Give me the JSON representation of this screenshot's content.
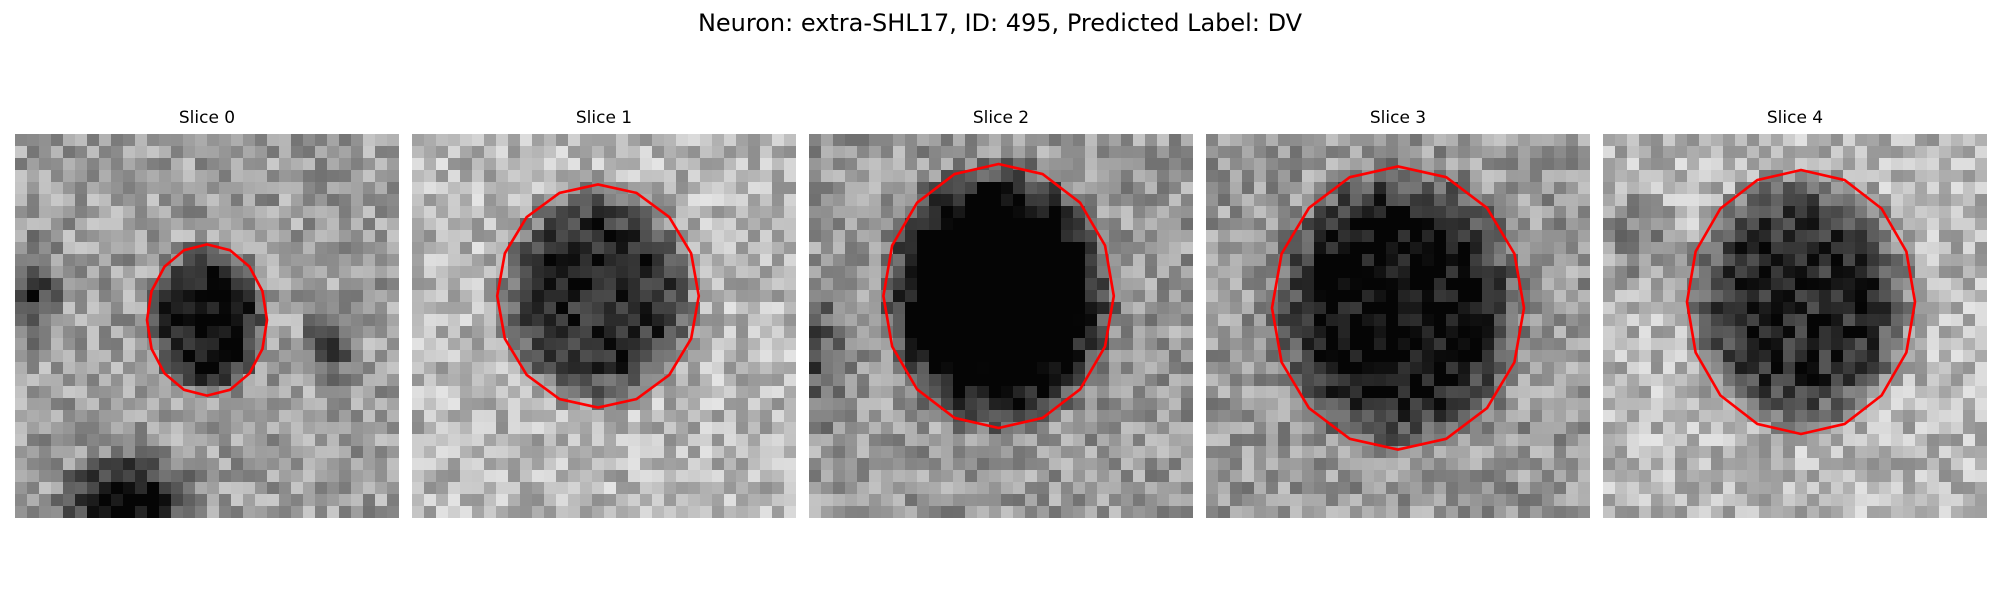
{
  "title": "Neuron: extra-SHL17, ID: 495, Predicted Label: DV",
  "slices": [
    {
      "label": "Slice 0",
      "contour_color": "#ff0000"
    },
    {
      "label": "Slice 1",
      "contour_color": "#ff0000"
    },
    {
      "label": "Slice 2",
      "contour_color": "#ff0000"
    },
    {
      "label": "Slice 3",
      "contour_color": "#ff0000"
    },
    {
      "label": "Slice 4",
      "contour_color": "#ff0000"
    }
  ]
}
